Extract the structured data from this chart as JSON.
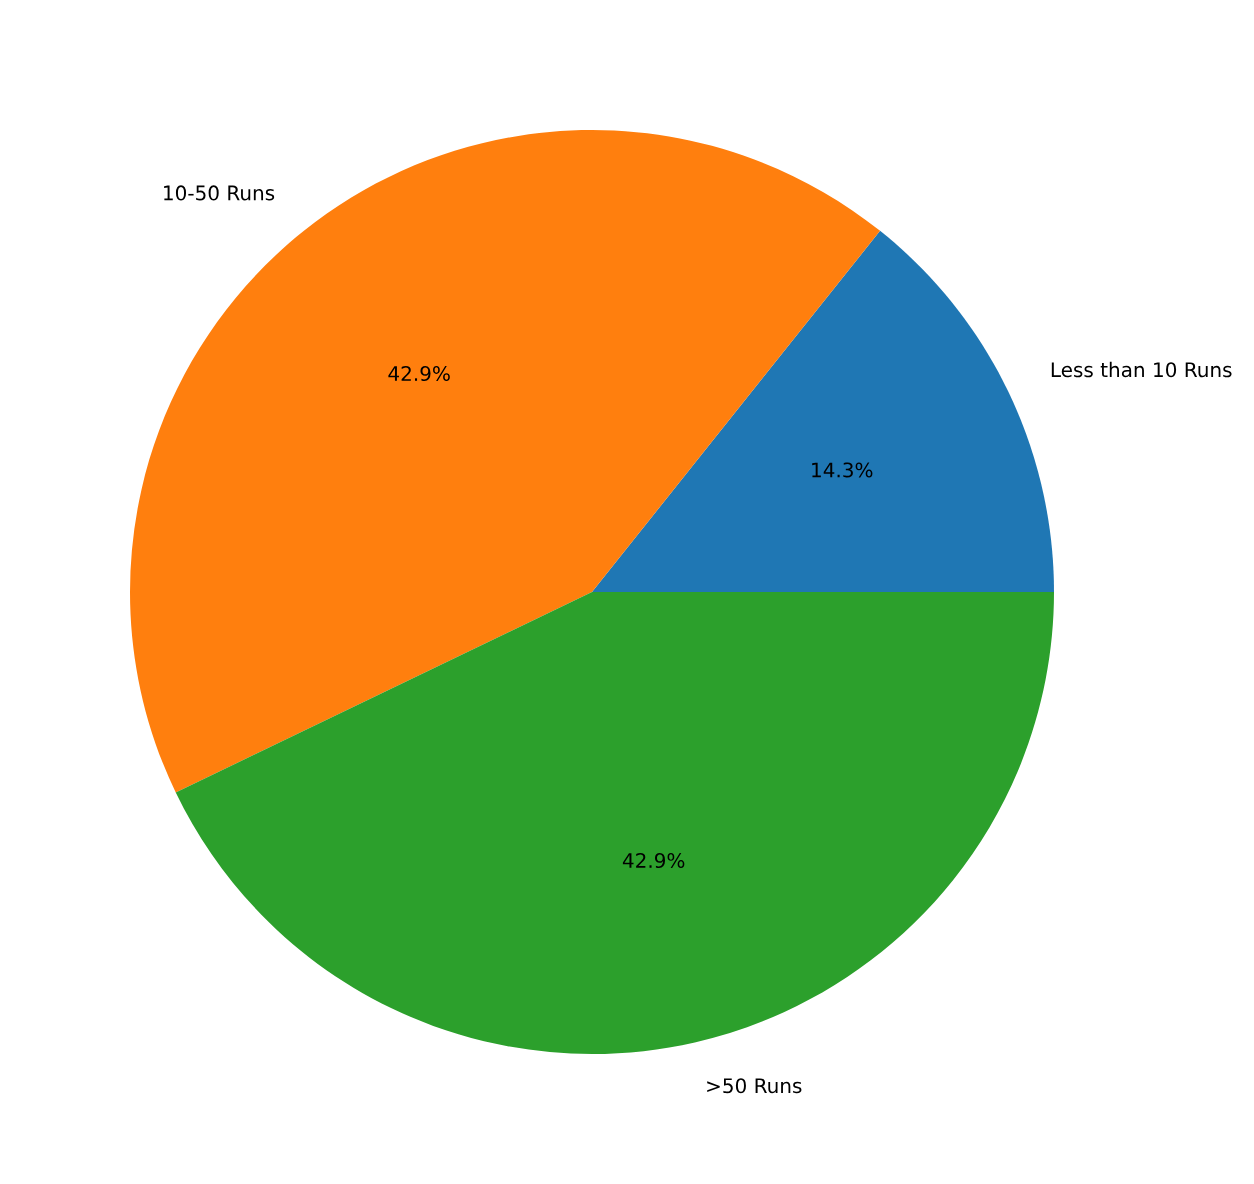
{
  "chart_data": {
    "type": "pie",
    "categories": [
      "Less than 10 Runs",
      "10-50 Runs",
      ">50 Runs"
    ],
    "values": [
      14.3,
      42.9,
      42.9
    ],
    "value_labels": [
      "14.3%",
      "42.9%",
      "42.9%"
    ],
    "colors": [
      "#1f77b4",
      "#ff7f0e",
      "#2ca02c"
    ]
  }
}
